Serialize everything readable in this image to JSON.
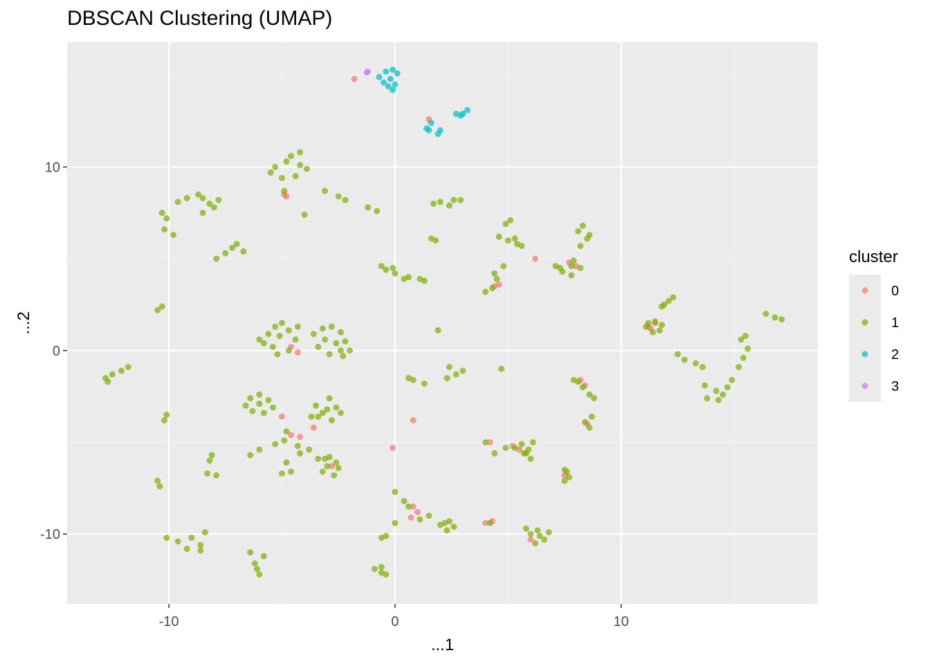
{
  "chart_data": {
    "type": "scatter",
    "title": "DBSCAN Clustering (UMAP)",
    "xlabel": "...1",
    "ylabel": "...2",
    "xlim": [
      -14.5,
      18.7
    ],
    "ylim": [
      -13.8,
      16.8
    ],
    "x_ticks": [
      -10,
      0,
      10
    ],
    "y_ticks": [
      10,
      0,
      -10
    ],
    "x_tick_labels": [
      "-10",
      "0",
      "10"
    ],
    "y_tick_labels": [
      "10",
      "0",
      "-10"
    ],
    "grid": true,
    "legend": {
      "title": "cluster",
      "position": "right"
    },
    "background": "#ebebeb",
    "series": [
      {
        "name": "0",
        "color": "#F8766D",
        "points": [
          [
            -4.9,
            8.5
          ],
          [
            -1.8,
            14.8
          ],
          [
            1.5,
            12.6
          ],
          [
            -4.6,
            0.2
          ],
          [
            -4.3,
            -0.1
          ],
          [
            -5.0,
            -3.6
          ],
          [
            -4.6,
            -4.6
          ],
          [
            -4.2,
            -4.7
          ],
          [
            -3.6,
            -4.2
          ],
          [
            -2.8,
            -6.3
          ],
          [
            0.8,
            -8.5
          ],
          [
            1.0,
            -8.8
          ],
          [
            0.7,
            -9.1
          ],
          [
            0.8,
            -3.8
          ],
          [
            4.4,
            3.5
          ],
          [
            4.6,
            3.6
          ],
          [
            6.2,
            5.0
          ],
          [
            6.0,
            -10.3
          ],
          [
            7.7,
            4.8
          ],
          [
            8.0,
            4.6
          ],
          [
            8.2,
            -1.6
          ],
          [
            8.4,
            -1.9
          ],
          [
            8.5,
            -4.0
          ],
          [
            7.5,
            -6.8
          ],
          [
            4.0,
            -9.4
          ],
          [
            4.2,
            -5.0
          ],
          [
            5.2,
            -5.2
          ],
          [
            5.5,
            -5.4
          ],
          [
            11.2,
            1.3
          ],
          [
            11.5,
            1.6
          ],
          [
            11.3,
            1.2
          ],
          [
            4.3,
            -9.3
          ],
          [
            -0.1,
            -5.3
          ],
          [
            -4.8,
            8.4
          ]
        ]
      },
      {
        "name": "1",
        "color": "#7CAE00",
        "points": [
          [
            -5.3,
            10.0
          ],
          [
            -4.8,
            10.3
          ],
          [
            -4.6,
            10.6
          ],
          [
            -4.2,
            10.8
          ],
          [
            -5.0,
            9.4
          ],
          [
            -5.5,
            9.7
          ],
          [
            -4.2,
            10.1
          ],
          [
            -4.4,
            9.5
          ],
          [
            -3.9,
            9.9
          ],
          [
            -4.9,
            8.7
          ],
          [
            -4.0,
            7.4
          ],
          [
            -3.1,
            8.7
          ],
          [
            -2.5,
            8.4
          ],
          [
            -2.2,
            8.2
          ],
          [
            -1.2,
            7.8
          ],
          [
            -0.8,
            7.6
          ],
          [
            -9.6,
            8.1
          ],
          [
            -9.2,
            8.3
          ],
          [
            -8.7,
            8.5
          ],
          [
            -8.5,
            8.3
          ],
          [
            -8.2,
            8.0
          ],
          [
            -8.0,
            7.8
          ],
          [
            -7.8,
            8.2
          ],
          [
            -8.5,
            7.5
          ],
          [
            -10.3,
            7.5
          ],
          [
            -10.1,
            7.2
          ],
          [
            -10.2,
            6.6
          ],
          [
            -9.8,
            6.3
          ],
          [
            -7.9,
            5.0
          ],
          [
            -7.5,
            5.3
          ],
          [
            -7.2,
            5.6
          ],
          [
            -7.0,
            5.8
          ],
          [
            -6.7,
            5.4
          ],
          [
            -10.5,
            2.2
          ],
          [
            -10.3,
            2.4
          ],
          [
            -12.8,
            -1.5
          ],
          [
            -12.5,
            -1.3
          ],
          [
            -12.1,
            -1.1
          ],
          [
            -11.8,
            -0.9
          ],
          [
            -12.7,
            -1.7
          ],
          [
            -6.0,
            0.6
          ],
          [
            -5.6,
            0.9
          ],
          [
            -5.3,
            1.3
          ],
          [
            -5.0,
            1.5
          ],
          [
            -4.7,
            1.1
          ],
          [
            -4.4,
            0.6
          ],
          [
            -4.7,
            0.0
          ],
          [
            -5.4,
            0.2
          ],
          [
            -5.8,
            0.4
          ],
          [
            -5.1,
            0.8
          ],
          [
            -5.2,
            -0.2
          ],
          [
            -4.3,
            1.3
          ],
          [
            -3.6,
            0.9
          ],
          [
            -3.2,
            1.2
          ],
          [
            -2.8,
            1.3
          ],
          [
            -2.4,
            1.0
          ],
          [
            -2.2,
            0.5
          ],
          [
            -2.4,
            0.0
          ],
          [
            -2.9,
            -0.2
          ],
          [
            -3.4,
            0.2
          ],
          [
            -3.1,
            0.6
          ],
          [
            -2.6,
            0.4
          ],
          [
            -2.0,
            0.0
          ],
          [
            -2.3,
            -0.3
          ],
          [
            -6.4,
            -2.6
          ],
          [
            -6.0,
            -2.4
          ],
          [
            -5.6,
            -2.7
          ],
          [
            -6.3,
            -3.3
          ],
          [
            -5.8,
            -3.4
          ],
          [
            -6.0,
            -2.9
          ],
          [
            -5.4,
            -3.1
          ],
          [
            -6.6,
            -3.0
          ],
          [
            -3.4,
            -3.6
          ],
          [
            -3.0,
            -3.2
          ],
          [
            -2.6,
            -3.1
          ],
          [
            -2.4,
            -3.4
          ],
          [
            -2.8,
            -3.8
          ],
          [
            -3.2,
            -3.4
          ],
          [
            -3.7,
            -3.6
          ],
          [
            -3.5,
            -3.0
          ],
          [
            -2.9,
            -2.6
          ],
          [
            -4.8,
            -4.4
          ],
          [
            -4.3,
            -5.2
          ],
          [
            -4.9,
            -4.9
          ],
          [
            -5.3,
            -5.1
          ],
          [
            -6.0,
            -5.4
          ],
          [
            -6.4,
            -5.7
          ],
          [
            -4.8,
            -6.1
          ],
          [
            -5.0,
            -6.7
          ],
          [
            -4.6,
            -6.6
          ],
          [
            -4.2,
            -5.6
          ],
          [
            -3.8,
            -5.4
          ],
          [
            -3.4,
            -5.9
          ],
          [
            -3.1,
            -5.9
          ],
          [
            -2.9,
            -5.8
          ],
          [
            -2.6,
            -6.1
          ],
          [
            -3.2,
            -6.6
          ],
          [
            -2.7,
            -6.8
          ],
          [
            -3.0,
            -6.3
          ],
          [
            -2.5,
            -6.4
          ],
          [
            -8.1,
            -5.7
          ],
          [
            -8.2,
            -6.0
          ],
          [
            -8.3,
            -6.7
          ],
          [
            -7.9,
            -6.8
          ],
          [
            -10.1,
            -3.5
          ],
          [
            -10.2,
            -3.8
          ],
          [
            -10.5,
            -7.1
          ],
          [
            -10.4,
            -7.4
          ],
          [
            -10.1,
            -10.2
          ],
          [
            -9.6,
            -10.4
          ],
          [
            -9.0,
            -10.2
          ],
          [
            -8.6,
            -10.6
          ],
          [
            -9.2,
            -10.8
          ],
          [
            -8.4,
            -9.9
          ],
          [
            -8.6,
            -10.9
          ],
          [
            -6.4,
            -11.0
          ],
          [
            -6.2,
            -11.6
          ],
          [
            -6.0,
            -12.2
          ],
          [
            -5.8,
            -11.2
          ],
          [
            -6.1,
            -11.9
          ],
          [
            -0.6,
            4.6
          ],
          [
            -0.4,
            4.4
          ],
          [
            0.0,
            4.2
          ],
          [
            0.6,
            4.0
          ],
          [
            1.1,
            3.9
          ],
          [
            1.3,
            3.8
          ],
          [
            0.4,
            3.9
          ],
          [
            -0.1,
            4.5
          ],
          [
            1.7,
            8.0
          ],
          [
            2.0,
            8.1
          ],
          [
            2.6,
            8.2
          ],
          [
            2.9,
            8.2
          ],
          [
            2.4,
            7.9
          ],
          [
            1.6,
            6.1
          ],
          [
            1.8,
            6.0
          ],
          [
            1.9,
            1.1
          ],
          [
            0.6,
            -1.5
          ],
          [
            0.8,
            -1.6
          ],
          [
            1.3,
            -1.8
          ],
          [
            2.4,
            -0.9
          ],
          [
            2.7,
            -1.3
          ],
          [
            2.3,
            -1.5
          ],
          [
            3.0,
            -1.1
          ],
          [
            4.7,
            -1.0
          ],
          [
            0.0,
            -7.7
          ],
          [
            0.4,
            -8.2
          ],
          [
            0.6,
            -8.5
          ],
          [
            1.1,
            -9.2
          ],
          [
            1.5,
            -9.0
          ],
          [
            2.0,
            -9.5
          ],
          [
            2.3,
            -9.8
          ],
          [
            2.4,
            -9.3
          ],
          [
            2.6,
            -9.6
          ],
          [
            2.2,
            -9.4
          ],
          [
            -0.6,
            -10.2
          ],
          [
            -0.4,
            -10.1
          ],
          [
            0.0,
            -9.4
          ],
          [
            -0.6,
            -11.8
          ],
          [
            -0.4,
            -12.2
          ],
          [
            4.9,
            6.9
          ],
          [
            5.1,
            7.1
          ],
          [
            4.6,
            6.2
          ],
          [
            5.0,
            6.0
          ],
          [
            5.4,
            5.8
          ],
          [
            5.6,
            5.7
          ],
          [
            5.3,
            6.1
          ],
          [
            4.4,
            4.2
          ],
          [
            4.5,
            3.9
          ],
          [
            4.3,
            3.4
          ],
          [
            4.0,
            3.2
          ],
          [
            4.8,
            4.6
          ],
          [
            7.1,
            4.6
          ],
          [
            7.4,
            4.3
          ],
          [
            7.8,
            4.1
          ],
          [
            7.8,
            4.6
          ],
          [
            8.2,
            4.5
          ],
          [
            7.3,
            4.5
          ],
          [
            7.9,
            4.9
          ],
          [
            8.1,
            6.5
          ],
          [
            8.5,
            6.1
          ],
          [
            8.2,
            5.7
          ],
          [
            8.6,
            6.3
          ],
          [
            8.3,
            6.8
          ],
          [
            7.9,
            -1.6
          ],
          [
            8.1,
            -1.7
          ],
          [
            8.3,
            -2.0
          ],
          [
            8.6,
            -2.4
          ],
          [
            8.8,
            -2.6
          ],
          [
            8.4,
            -3.9
          ],
          [
            8.6,
            -4.2
          ],
          [
            8.7,
            -3.6
          ],
          [
            7.5,
            -6.5
          ],
          [
            7.7,
            -6.9
          ],
          [
            7.5,
            -7.1
          ],
          [
            7.6,
            -6.6
          ],
          [
            4.0,
            -5.0
          ],
          [
            4.4,
            -5.6
          ],
          [
            4.9,
            -5.3
          ],
          [
            5.3,
            -5.3
          ],
          [
            5.6,
            -5.1
          ],
          [
            5.8,
            -5.6
          ],
          [
            6.0,
            -5.9
          ],
          [
            6.1,
            -5.0
          ],
          [
            5.7,
            -5.6
          ],
          [
            5.9,
            -5.4
          ],
          [
            6.0,
            -10.0
          ],
          [
            6.3,
            -9.8
          ],
          [
            6.6,
            -10.3
          ],
          [
            6.2,
            -10.5
          ],
          [
            6.8,
            -9.9
          ],
          [
            6.4,
            -10.1
          ],
          [
            5.8,
            -9.7
          ],
          [
            4.2,
            -9.4
          ],
          [
            11.1,
            1.3
          ],
          [
            11.5,
            1.5
          ],
          [
            11.8,
            1.4
          ],
          [
            11.4,
            1.0
          ],
          [
            11.2,
            1.5
          ],
          [
            11.7,
            1.1
          ],
          [
            11.8,
            2.4
          ],
          [
            12.1,
            2.7
          ],
          [
            12.3,
            2.9
          ],
          [
            11.9,
            2.5
          ],
          [
            12.5,
            -0.2
          ],
          [
            12.8,
            -0.5
          ],
          [
            13.3,
            -0.7
          ],
          [
            13.6,
            -0.9
          ],
          [
            13.7,
            -1.9
          ],
          [
            14.2,
            -2.2
          ],
          [
            14.5,
            -2.4
          ],
          [
            13.8,
            -2.6
          ],
          [
            14.3,
            -2.7
          ],
          [
            14.7,
            -2.0
          ],
          [
            14.9,
            -1.6
          ],
          [
            15.2,
            -0.9
          ],
          [
            15.4,
            -0.4
          ],
          [
            15.6,
            0.1
          ],
          [
            15.3,
            0.6
          ],
          [
            15.5,
            0.8
          ],
          [
            16.4,
            2.0
          ],
          [
            16.8,
            1.8
          ],
          [
            17.1,
            1.7
          ],
          [
            -0.9,
            -11.9
          ],
          [
            -0.6,
            -12.1
          ]
        ]
      },
      {
        "name": "2",
        "color": "#00BFC4",
        "points": [
          [
            -0.4,
            15.2
          ],
          [
            -0.1,
            15.3
          ],
          [
            0.1,
            15.1
          ],
          [
            -0.2,
            14.8
          ],
          [
            -0.5,
            14.6
          ],
          [
            0.0,
            14.5
          ],
          [
            -0.1,
            14.2
          ],
          [
            -0.7,
            14.9
          ],
          [
            -0.3,
            14.4
          ],
          [
            1.4,
            12.1
          ],
          [
            1.6,
            12.4
          ],
          [
            1.5,
            12.0
          ],
          [
            1.9,
            11.8
          ],
          [
            2.0,
            12.0
          ],
          [
            2.7,
            12.9
          ],
          [
            3.0,
            12.9
          ],
          [
            3.2,
            13.1
          ],
          [
            2.9,
            12.8
          ]
        ]
      },
      {
        "name": "3",
        "color": "#C77CFF",
        "points": [
          [
            -1.2,
            15.2
          ],
          [
            -1.25,
            15.15
          ]
        ]
      }
    ]
  }
}
